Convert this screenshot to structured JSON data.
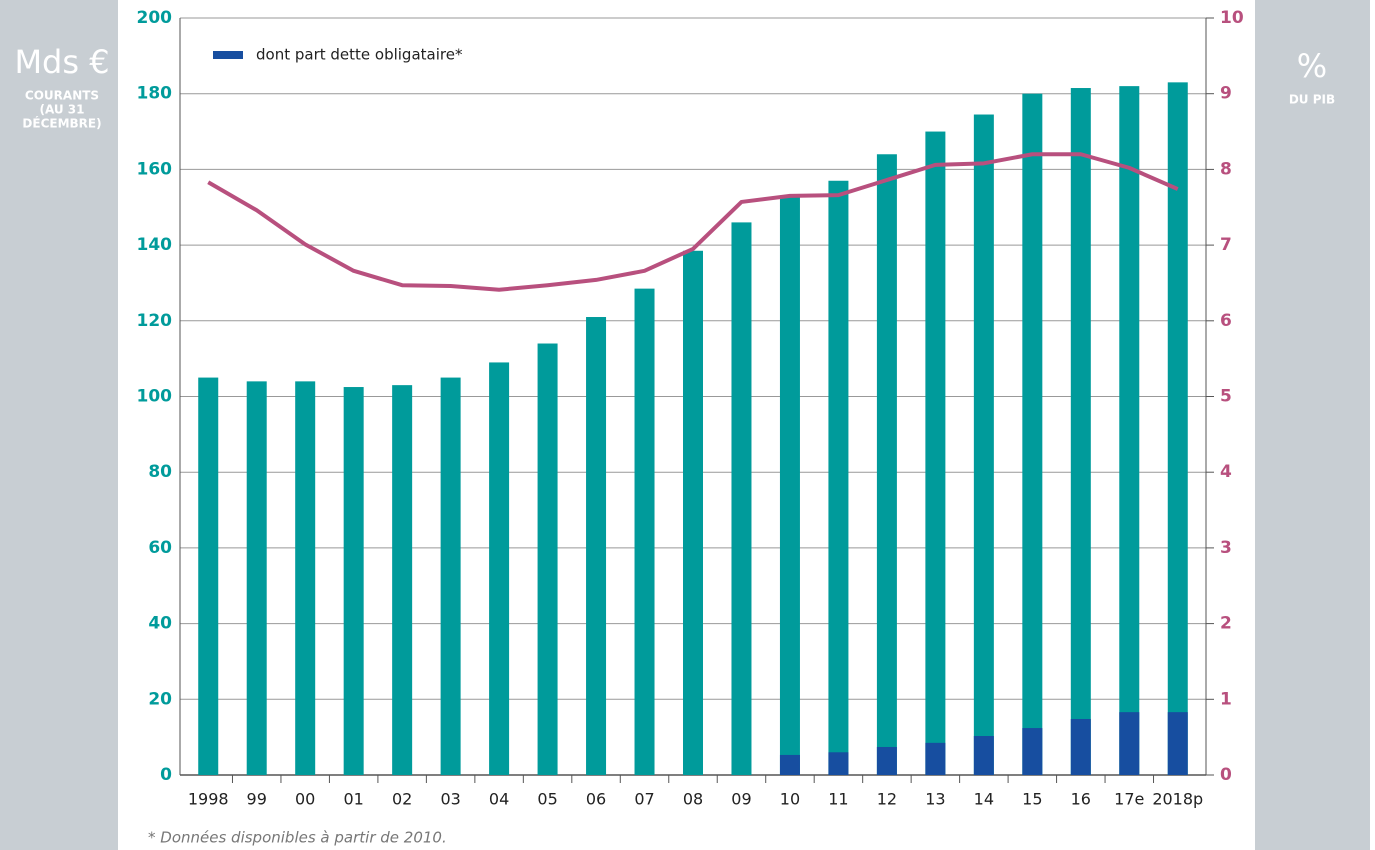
{
  "chart_data": {
    "type": "bar",
    "ylabel": [
      "Mds €",
      "COURANTS",
      "(AU 31",
      "DÉCEMBRE)"
    ],
    "y2label": [
      "%",
      "DU PIB"
    ],
    "footnote": "* Données disponibles à partir de 2010.",
    "categories": [
      "1998",
      "99",
      "00",
      "01",
      "02",
      "03",
      "04",
      "05",
      "06",
      "07",
      "08",
      "09",
      "10",
      "11",
      "12",
      "13",
      "14",
      "15",
      "16",
      "17e",
      "2018p"
    ],
    "series": [
      {
        "color": "#009b9b",
        "values": [
          105,
          104,
          104,
          102.5,
          103,
          105,
          109,
          114,
          121,
          128.5,
          138.5,
          146,
          153,
          157,
          164,
          170,
          174.5,
          180,
          181.5,
          182,
          183
        ]
      },
      {
        "name": "dont part dette obligataire*",
        "color": "#174ea0",
        "values": [
          null,
          null,
          null,
          null,
          null,
          null,
          null,
          null,
          null,
          null,
          null,
          null,
          5.3,
          6,
          7.4,
          8.5,
          10.3,
          12.4,
          14.8,
          16.6,
          16.6
        ]
      },
      {
        "type": "line",
        "axis": "y2",
        "color": "#b8507e",
        "values": [
          7.83,
          7.46,
          7.01,
          6.66,
          6.47,
          6.46,
          6.41,
          6.47,
          6.54,
          6.66,
          6.95,
          7.57,
          7.65,
          7.66,
          7.86,
          8.06,
          8.08,
          8.2,
          8.2,
          8.02,
          7.74
        ]
      }
    ],
    "ylim": [
      0,
      200
    ],
    "yticks": [
      0,
      20,
      40,
      60,
      80,
      100,
      120,
      140,
      160,
      180,
      200
    ],
    "y2lim": [
      0,
      10
    ],
    "y2ticks": [
      0,
      1,
      2,
      3,
      4,
      5,
      6,
      7,
      8,
      9,
      10
    ],
    "grid": true
  }
}
